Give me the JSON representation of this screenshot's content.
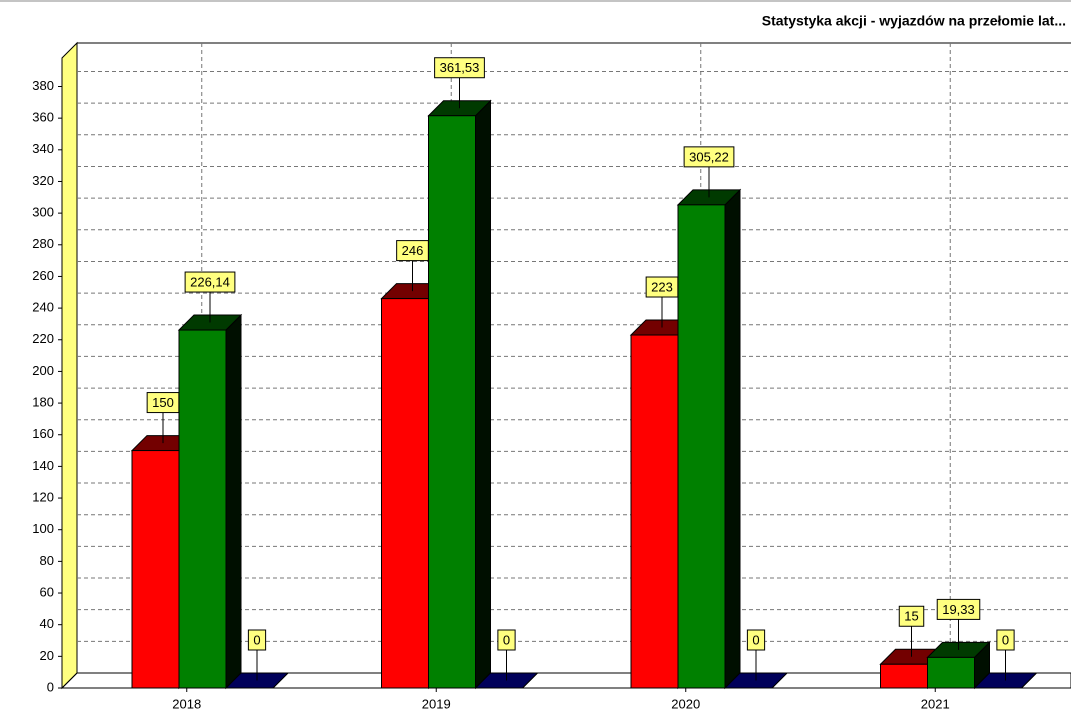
{
  "chart_data": {
    "type": "bar3d",
    "title": "Statystyka akcji - wyjazdów na przełomie lat...",
    "categories": [
      "2018",
      "2019",
      "2020",
      "2021"
    ],
    "series": [
      {
        "color": "#ff0000",
        "values": [
          150,
          246,
          223,
          15
        ]
      },
      {
        "color": "#008000",
        "values": [
          226.14,
          361.53,
          305.22,
          19.33
        ],
        "value_labels": [
          "226,14",
          "361,53",
          "305,22",
          "19,33"
        ]
      },
      {
        "color": "#0000c8",
        "values": [
          0,
          0,
          0,
          0
        ]
      }
    ],
    "ylim": [
      0,
      398
    ],
    "yticks": [
      0,
      20,
      40,
      60,
      80,
      100,
      120,
      140,
      160,
      180,
      200,
      220,
      240,
      260,
      280,
      300,
      320,
      340,
      360,
      380
    ],
    "grid": true
  }
}
